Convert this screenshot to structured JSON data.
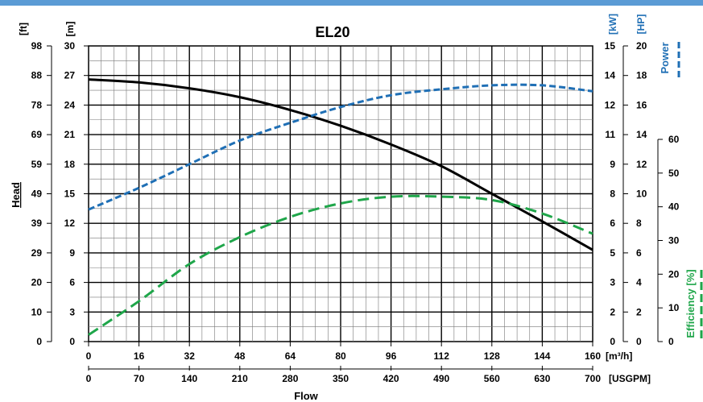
{
  "chart_data": {
    "type": "line",
    "title": "EL20",
    "xlabel": "Flow",
    "ylabel": "Head",
    "x_axes": [
      {
        "unit": "[m³/h]",
        "ticks": [
          "0",
          "16",
          "32",
          "48",
          "64",
          "80",
          "96",
          "112",
          "128",
          "144",
          "160"
        ],
        "range": [
          0,
          160
        ]
      },
      {
        "unit": "[USGPM]",
        "ticks": [
          "0",
          "70",
          "140",
          "210",
          "280",
          "350",
          "420",
          "490",
          "560",
          "630",
          "700"
        ],
        "range": [
          0,
          700
        ]
      }
    ],
    "left_axes": [
      {
        "unit": "[ft]",
        "ticks": [
          "0",
          "10",
          "20",
          "29",
          "39",
          "49",
          "59",
          "69",
          "78",
          "88",
          "98"
        ]
      },
      {
        "unit": "[m]",
        "ticks": [
          "0",
          "3",
          "6",
          "9",
          "12",
          "15",
          "18",
          "21",
          "24",
          "27",
          "30"
        ],
        "range": [
          0,
          30
        ]
      }
    ],
    "right_axes": [
      {
        "unit": "[kW]",
        "ticks": [
          "0",
          "2",
          "3",
          "5",
          "6",
          "8",
          "9",
          "11",
          "12",
          "14",
          "15"
        ],
        "range": [
          0,
          15
        ]
      },
      {
        "unit": "[HP]",
        "ticks": [
          "0",
          "2",
          "4",
          "6",
          "8",
          "10",
          "12",
          "14",
          "16",
          "18",
          "20"
        ],
        "range": [
          0,
          20
        ]
      },
      {
        "unit": "",
        "ticks": [
          "0",
          "10",
          "20",
          "30",
          "40",
          "50",
          "60"
        ],
        "range": [
          0,
          60
        ]
      }
    ],
    "grid": true,
    "legend": [
      "Power",
      "Efficiency [%]"
    ],
    "series": [
      {
        "name": "Head",
        "unit": "m",
        "color": "#000000",
        "style": "solid",
        "x": [
          0,
          16,
          32,
          48,
          64,
          80,
          96,
          112,
          128,
          144,
          160
        ],
        "y": [
          26.6,
          26.3,
          25.7,
          24.8,
          23.5,
          21.9,
          20.0,
          17.8,
          15.0,
          12.2,
          9.3
        ]
      },
      {
        "name": "Power",
        "unit": "kW",
        "color": "#1f6fb5",
        "style": "dashed",
        "x": [
          0,
          16,
          32,
          48,
          64,
          80,
          96,
          112,
          128,
          144,
          160
        ],
        "y": [
          6.7,
          7.8,
          9.0,
          10.2,
          11.1,
          11.9,
          12.5,
          12.8,
          13.0,
          13.0,
          12.7
        ]
      },
      {
        "name": "Efficiency [%]",
        "unit": "%",
        "color": "#1fa64a",
        "style": "dashed",
        "x": [
          0,
          16,
          32,
          48,
          64,
          80,
          96,
          112,
          128,
          144,
          160
        ],
        "y": [
          2,
          12,
          23,
          31,
          37,
          41,
          43,
          43,
          42,
          38,
          32
        ]
      }
    ]
  },
  "colors": {
    "power": "#1f6fb5",
    "efficiency": "#1fa64a",
    "head": "#000000",
    "topbar": "#5b9bd5"
  }
}
